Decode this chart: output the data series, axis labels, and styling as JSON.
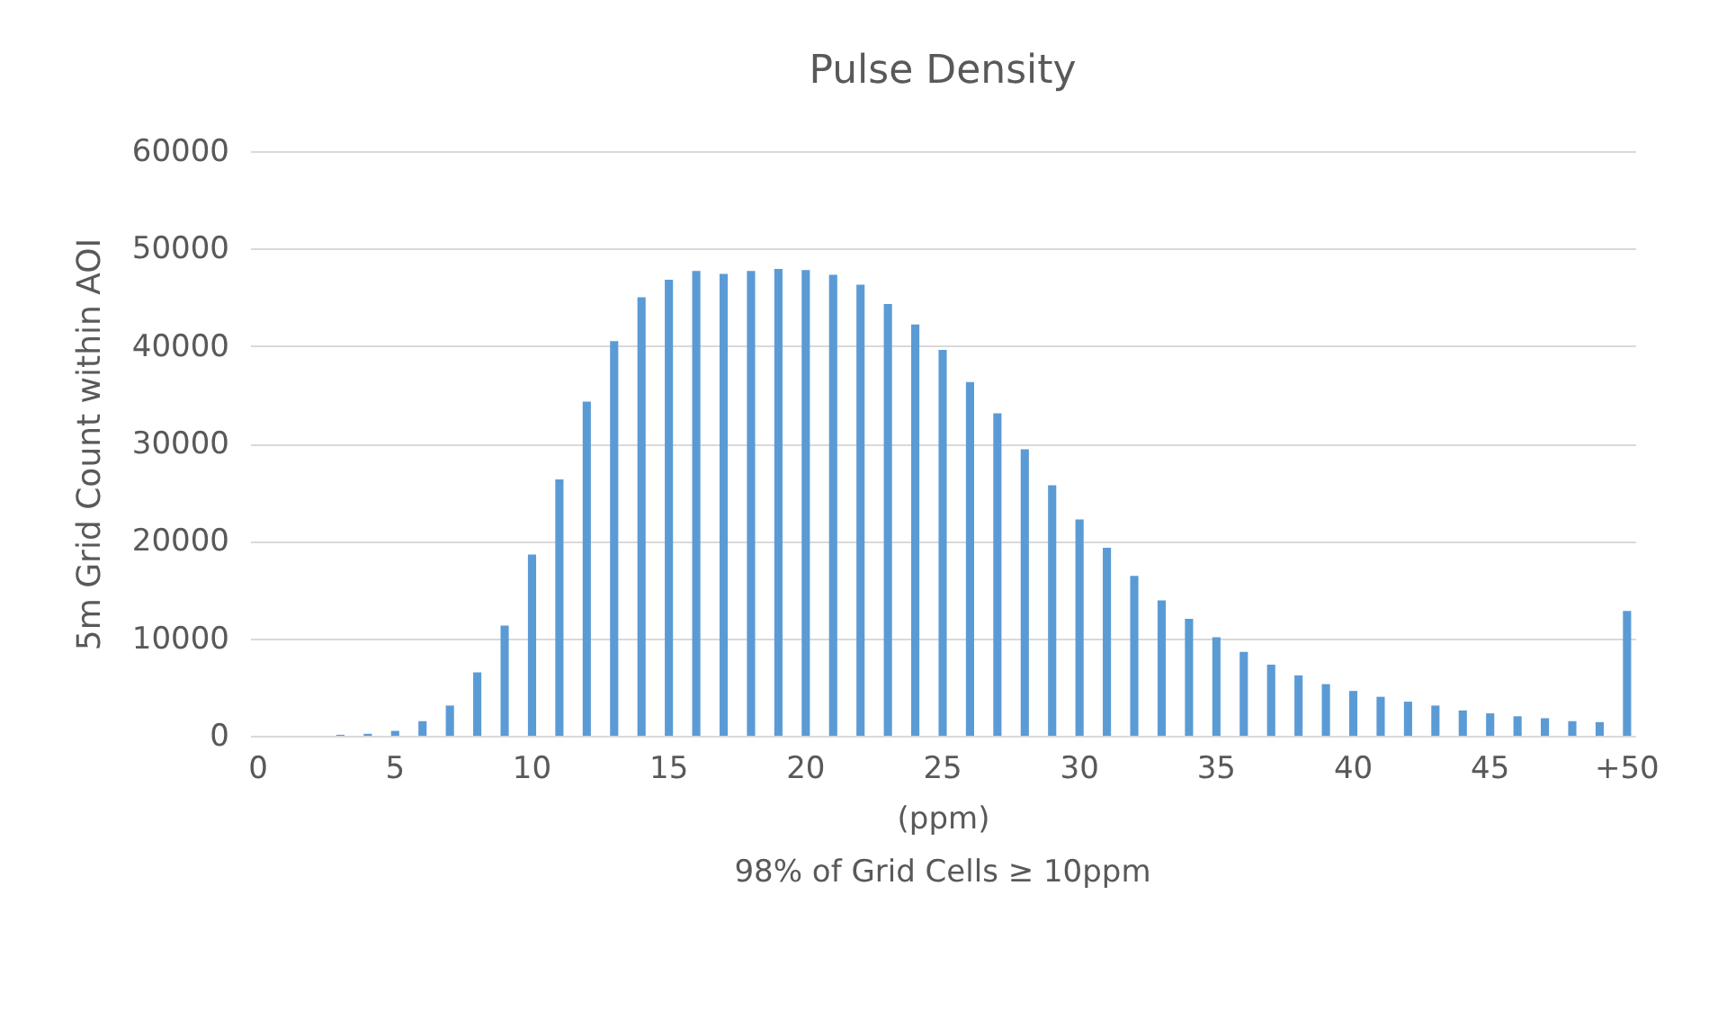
{
  "chart_data": {
    "type": "bar",
    "title": "Pulse Density",
    "xlabel": "(ppm)",
    "ylabel": "5m Grid Count within AOI",
    "annotations": [
      "98% of Grid Cells ≥ 10ppm"
    ],
    "categories": [
      "0",
      null,
      null,
      null,
      null,
      "5",
      null,
      null,
      null,
      null,
      "10",
      null,
      null,
      null,
      null,
      "15",
      null,
      null,
      null,
      null,
      "20",
      null,
      null,
      null,
      null,
      "25",
      null,
      null,
      null,
      null,
      "30",
      null,
      null,
      null,
      null,
      "35",
      null,
      null,
      null,
      null,
      "40",
      null,
      null,
      null,
      null,
      "45",
      null,
      null,
      null,
      null,
      "+50"
    ],
    "values": [
      0,
      0,
      0,
      100,
      200,
      500,
      1500,
      3100,
      6500,
      11300,
      18600,
      26300,
      34300,
      40500,
      45000,
      46800,
      47700,
      47400,
      47700,
      47900,
      47800,
      47300,
      46300,
      44300,
      42200,
      39600,
      36300,
      33100,
      29400,
      25700,
      22200,
      19300,
      16400,
      13900,
      12000,
      10100,
      8600,
      7300,
      6200,
      5300,
      4600,
      4000,
      3500,
      3100,
      2600,
      2300,
      2000,
      1800,
      1500,
      1400,
      12800
    ],
    "color": "#5b9bd5",
    "ylim": [
      0,
      60000
    ],
    "yticks": [
      0,
      10000,
      20000,
      30000,
      40000,
      50000,
      60000
    ],
    "grid": "y"
  }
}
